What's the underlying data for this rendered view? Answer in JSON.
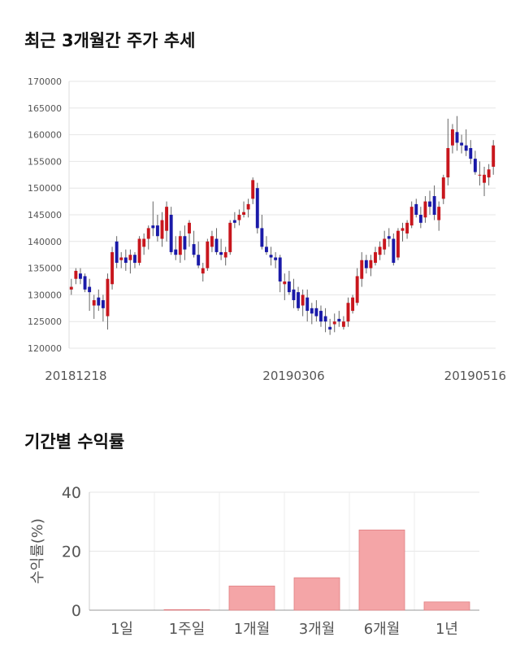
{
  "sections": {
    "price_title": "최근 3개월간 주가 추세",
    "return_title": "기간별 수익률"
  },
  "colors": {
    "up": "#c8161d",
    "down": "#1a1aa8",
    "bar": "#f4a5a7",
    "bar_edge": "#e07f82"
  },
  "chart_data": [
    {
      "type": "candlestick",
      "title": "최근 3개월간 주가 추세",
      "ylim": [
        120000,
        170000
      ],
      "y_ticks": [
        120000,
        125000,
        130000,
        135000,
        140000,
        145000,
        150000,
        155000,
        160000,
        165000,
        170000
      ],
      "x_labels": [
        {
          "label": "20181218",
          "index": 1
        },
        {
          "label": "20190306",
          "index": 49
        },
        {
          "label": "20190516",
          "index": 89
        }
      ],
      "grid": true,
      "candles": [
        [
          131000,
          133000,
          130000,
          131500
        ],
        [
          133000,
          135000,
          132000,
          134500
        ],
        [
          134000,
          135000,
          132000,
          133000
        ],
        [
          133500,
          134000,
          130500,
          131000
        ],
        [
          131500,
          133000,
          127000,
          130500
        ],
        [
          128000,
          130000,
          125500,
          129000
        ],
        [
          129500,
          131000,
          127000,
          128000
        ],
        [
          129000,
          130000,
          125000,
          127500
        ],
        [
          126000,
          134000,
          123500,
          133000
        ],
        [
          132000,
          139000,
          131000,
          138000
        ],
        [
          140000,
          141000,
          135000,
          136000
        ],
        [
          136500,
          138000,
          135000,
          137000
        ],
        [
          137000,
          138500,
          134500,
          136000
        ],
        [
          136500,
          138500,
          134000,
          137500
        ],
        [
          137500,
          138000,
          135000,
          136000
        ],
        [
          136000,
          141000,
          135500,
          140500
        ],
        [
          139000,
          141500,
          137500,
          140500
        ],
        [
          140500,
          143000,
          138500,
          142500
        ],
        [
          143000,
          147500,
          141000,
          142500
        ],
        [
          143000,
          145000,
          140000,
          141000
        ],
        [
          140500,
          145500,
          139000,
          144000
        ],
        [
          142000,
          147500,
          140000,
          146500
        ],
        [
          145000,
          146500,
          137500,
          138000
        ],
        [
          138500,
          141000,
          136500,
          137500
        ],
        [
          137500,
          142000,
          136000,
          141000
        ],
        [
          141000,
          143000,
          136500,
          138500
        ],
        [
          141500,
          144000,
          139000,
          143500
        ],
        [
          139500,
          142000,
          137000,
          137500
        ],
        [
          137500,
          140000,
          135000,
          135500
        ],
        [
          134000,
          136000,
          132500,
          135000
        ],
        [
          135000,
          140500,
          134500,
          140000
        ],
        [
          139000,
          142000,
          138000,
          141000
        ],
        [
          140500,
          142500,
          137500,
          138000
        ],
        [
          138000,
          140500,
          136500,
          137500
        ],
        [
          137000,
          139000,
          135500,
          138000
        ],
        [
          138000,
          144000,
          137500,
          143500
        ],
        [
          144000,
          145500,
          142500,
          143500
        ],
        [
          144000,
          146000,
          143000,
          145000
        ],
        [
          145000,
          147500,
          144500,
          145500
        ],
        [
          146000,
          148000,
          144500,
          147000
        ],
        [
          148000,
          152000,
          147000,
          151500
        ],
        [
          150000,
          151000,
          141500,
          142500
        ],
        [
          142500,
          145000,
          138500,
          139000
        ],
        [
          139000,
          141000,
          137500,
          138000
        ],
        [
          137500,
          139000,
          135500,
          137000
        ],
        [
          137000,
          138000,
          135000,
          136500
        ],
        [
          137000,
          137500,
          130500,
          132500
        ],
        [
          132000,
          134000,
          129000,
          132500
        ],
        [
          132500,
          134500,
          130000,
          130500
        ],
        [
          131000,
          133000,
          127500,
          129000
        ],
        [
          130500,
          131500,
          127000,
          127500
        ],
        [
          128000,
          131000,
          126000,
          130000
        ],
        [
          129500,
          131000,
          125000,
          127000
        ],
        [
          127500,
          128500,
          124500,
          126500
        ],
        [
          127500,
          129000,
          125000,
          126000
        ],
        [
          127000,
          128000,
          124000,
          125000
        ],
        [
          126000,
          127500,
          123000,
          125000
        ],
        [
          124000,
          125500,
          122500,
          123500
        ],
        [
          124500,
          126500,
          123000,
          125000
        ],
        [
          125500,
          127000,
          124000,
          125000
        ],
        [
          124000,
          126000,
          123500,
          125000
        ],
        [
          125000,
          129500,
          124000,
          128500
        ],
        [
          127000,
          130000,
          126500,
          129500
        ],
        [
          128500,
          135000,
          128000,
          133500
        ],
        [
          133000,
          138000,
          131500,
          136500
        ],
        [
          136500,
          137500,
          134000,
          135000
        ],
        [
          135000,
          137500,
          133500,
          136500
        ],
        [
          136000,
          139000,
          135500,
          138000
        ],
        [
          137500,
          140000,
          136500,
          139000
        ],
        [
          138500,
          142000,
          137500,
          140500
        ],
        [
          141000,
          142500,
          139000,
          140500
        ],
        [
          140500,
          141500,
          135500,
          136000
        ],
        [
          137000,
          142500,
          136500,
          142000
        ],
        [
          142000,
          143500,
          140000,
          142500
        ],
        [
          141500,
          144000,
          140500,
          143500
        ],
        [
          143000,
          147500,
          142500,
          146500
        ],
        [
          147000,
          148000,
          144500,
          145000
        ],
        [
          145000,
          146500,
          142500,
          143500
        ],
        [
          144500,
          148500,
          143500,
          147500
        ],
        [
          147500,
          149500,
          145000,
          146500
        ],
        [
          148500,
          150500,
          144000,
          145000
        ],
        [
          144000,
          147500,
          142000,
          146500
        ],
        [
          148000,
          152500,
          147000,
          152000
        ],
        [
          152000,
          163000,
          150500,
          157500
        ],
        [
          158000,
          162000,
          156500,
          161000
        ],
        [
          160500,
          163500,
          157000,
          158500
        ],
        [
          158500,
          160000,
          156500,
          158000
        ],
        [
          158000,
          161000,
          156000,
          157000
        ],
        [
          157500,
          159000,
          154500,
          155500
        ],
        [
          155500,
          157000,
          152500,
          153000
        ],
        [
          152500,
          155000,
          150500,
          152500
        ],
        [
          151000,
          154000,
          148500,
          152500
        ],
        [
          152000,
          154500,
          150500,
          153500
        ],
        [
          154000,
          159000,
          152500,
          158000
        ]
      ]
    },
    {
      "type": "bar",
      "title": "기간별 수익률",
      "categories": [
        "1일",
        "1주일",
        "1개월",
        "3개월",
        "6개월",
        "1년"
      ],
      "values": [
        0.0,
        0.2,
        8.2,
        11.0,
        27.2,
        2.8
      ],
      "ylabel": "수익률(%)",
      "ylim": [
        0,
        40
      ],
      "y_ticks": [
        0,
        20,
        40
      ],
      "grid": true
    }
  ]
}
